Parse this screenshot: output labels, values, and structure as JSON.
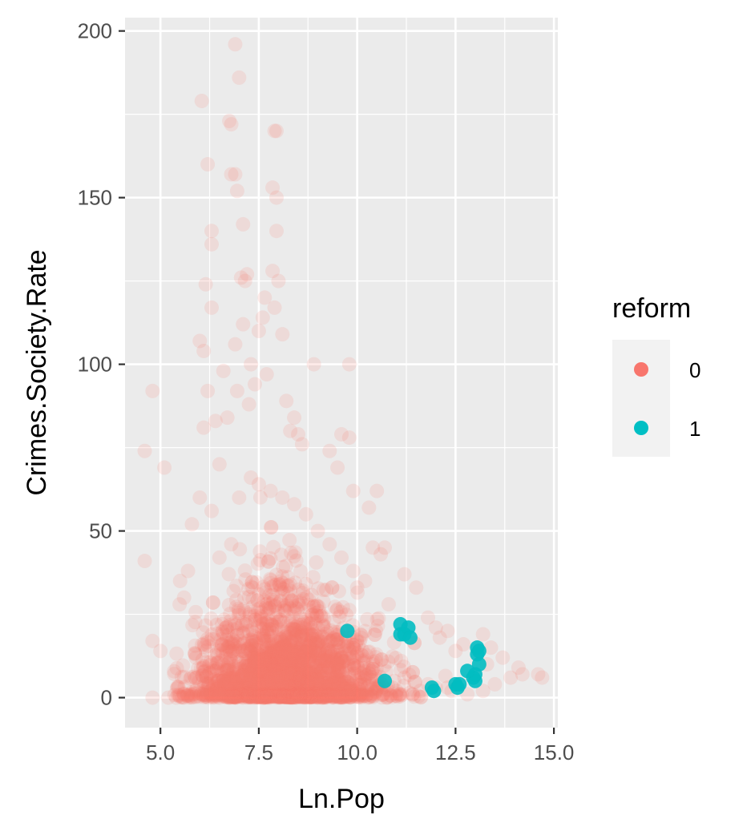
{
  "chart_data": {
    "type": "scatter",
    "xlabel": "Ln.Pop",
    "ylabel": "Crimes.Society.Rate",
    "xlim": [
      4.1,
      15.1
    ],
    "ylim": [
      -9,
      204
    ],
    "x_ticks": [
      5.0,
      7.5,
      10.0,
      12.5,
      15.0
    ],
    "x_tick_labels": [
      "5.0",
      "7.5",
      "10.0",
      "12.5",
      "15.0"
    ],
    "y_ticks": [
      0,
      50,
      100,
      150,
      200
    ],
    "y_tick_labels": [
      "0",
      "50",
      "100",
      "150",
      "200"
    ],
    "grid": true,
    "legend": {
      "title": "reform",
      "position": "right",
      "entries": [
        {
          "label": "0",
          "color": "#F8766D"
        },
        {
          "label": "1",
          "color": "#00BFC4"
        }
      ]
    },
    "series": [
      {
        "name": "0",
        "color": "#F8766D",
        "opacity": 0.15,
        "points": [
          [
            4.6,
            74
          ],
          [
            4.8,
            92
          ],
          [
            4.6,
            41
          ],
          [
            4.8,
            17
          ],
          [
            5.1,
            69
          ],
          [
            5.0,
            14
          ],
          [
            4.8,
            0
          ],
          [
            5.2,
            0
          ],
          [
            5.4,
            0
          ],
          [
            5.5,
            35
          ],
          [
            5.7,
            38
          ],
          [
            5.8,
            52
          ],
          [
            5.9,
            12
          ],
          [
            5.6,
            30
          ],
          [
            6.0,
            60
          ],
          [
            6.1,
            81
          ],
          [
            6.0,
            107
          ],
          [
            6.05,
            179
          ],
          [
            6.2,
            160
          ],
          [
            6.15,
            124
          ],
          [
            6.3,
            140
          ],
          [
            6.3,
            136
          ],
          [
            6.3,
            117
          ],
          [
            6.1,
            104
          ],
          [
            6.2,
            92
          ],
          [
            6.4,
            83
          ],
          [
            6.5,
            70
          ],
          [
            6.3,
            56
          ],
          [
            6.6,
            98
          ],
          [
            6.7,
            84
          ],
          [
            6.75,
            173
          ],
          [
            6.8,
            172
          ],
          [
            6.8,
            157
          ],
          [
            6.9,
            157
          ],
          [
            6.95,
            152
          ],
          [
            6.9,
            196
          ],
          [
            7.0,
            186
          ],
          [
            7.1,
            142
          ],
          [
            7.05,
            126
          ],
          [
            7.15,
            125
          ],
          [
            7.2,
            127
          ],
          [
            7.1,
            112
          ],
          [
            6.9,
            106
          ],
          [
            7.3,
            100
          ],
          [
            6.95,
            92
          ],
          [
            7.25,
            88
          ],
          [
            7.4,
            94
          ],
          [
            7.5,
            110
          ],
          [
            7.6,
            114
          ],
          [
            7.65,
            120
          ],
          [
            7.85,
            153
          ],
          [
            7.9,
            170
          ],
          [
            7.95,
            170
          ],
          [
            7.95,
            150
          ],
          [
            7.95,
            140
          ],
          [
            7.85,
            128
          ],
          [
            8.0,
            125
          ],
          [
            7.9,
            117
          ],
          [
            8.1,
            109
          ],
          [
            7.7,
            97
          ],
          [
            8.2,
            89
          ],
          [
            8.4,
            84
          ],
          [
            8.3,
            80
          ],
          [
            8.5,
            79
          ],
          [
            8.6,
            76
          ],
          [
            8.9,
            100
          ],
          [
            9.8,
            100
          ],
          [
            9.6,
            79
          ],
          [
            9.8,
            78
          ],
          [
            9.3,
            74
          ],
          [
            9.5,
            69
          ],
          [
            9.9,
            62
          ],
          [
            10.5,
            62
          ],
          [
            10.3,
            57
          ],
          [
            10.7,
            45
          ],
          [
            10.6,
            43
          ],
          [
            11.2,
            37
          ],
          [
            11.5,
            33
          ],
          [
            10.0,
            33
          ],
          [
            10.8,
            28
          ],
          [
            11.8,
            24
          ],
          [
            12.0,
            21
          ],
          [
            12.3,
            20
          ],
          [
            12.1,
            18
          ],
          [
            12.7,
            16
          ],
          [
            12.5,
            14
          ],
          [
            13.2,
            19
          ],
          [
            13.4,
            15
          ],
          [
            13.7,
            12
          ],
          [
            13.3,
            10
          ],
          [
            14.1,
            9
          ],
          [
            14.2,
            7
          ],
          [
            14.7,
            6
          ],
          [
            14.6,
            7
          ],
          [
            13.9,
            6
          ],
          [
            13.5,
            4
          ],
          [
            13.2,
            2
          ],
          [
            12.8,
            1
          ],
          [
            12.0,
            3
          ],
          [
            11.6,
            2
          ],
          [
            5.6,
            1
          ],
          [
            5.9,
            2
          ],
          [
            6.2,
            4
          ],
          [
            6.4,
            8
          ],
          [
            6.6,
            10
          ],
          [
            6.7,
            20
          ],
          [
            6.5,
            42
          ],
          [
            6.8,
            46
          ],
          [
            7.0,
            60
          ],
          [
            7.3,
            66
          ],
          [
            7.5,
            64
          ],
          [
            7.8,
            62
          ],
          [
            8.1,
            60
          ],
          [
            8.4,
            58
          ],
          [
            8.7,
            55
          ],
          [
            9.0,
            50
          ],
          [
            9.3,
            46
          ],
          [
            9.6,
            42
          ],
          [
            9.9,
            38
          ],
          [
            10.2,
            35
          ]
        ],
        "dense_region": {
          "center": [
            8.2,
            8
          ],
          "description_points": [
            [
              6.5,
              0
            ],
            [
              7.0,
              2
            ],
            [
              7.5,
              5
            ],
            [
              8.0,
              10
            ],
            [
              8.5,
              15
            ],
            [
              9.0,
              12
            ],
            [
              9.5,
              8
            ],
            [
              10.0,
              5
            ],
            [
              10.5,
              3
            ],
            [
              11.0,
              2
            ],
            [
              7.2,
              20
            ],
            [
              7.8,
              28
            ],
            [
              8.3,
              32
            ],
            [
              8.8,
              26
            ],
            [
              9.2,
              18
            ],
            [
              9.8,
              14
            ],
            [
              10.4,
              10
            ],
            [
              11.2,
              6
            ],
            [
              11.8,
              4
            ],
            [
              12.4,
              2
            ]
          ]
        }
      },
      {
        "name": "1",
        "color": "#00BFC4",
        "opacity": 0.85,
        "points": [
          [
            9.75,
            20
          ],
          [
            10.7,
            5
          ],
          [
            11.1,
            22
          ],
          [
            11.1,
            19
          ],
          [
            11.2,
            19
          ],
          [
            11.3,
            21
          ],
          [
            11.35,
            18
          ],
          [
            11.9,
            3
          ],
          [
            11.95,
            2
          ],
          [
            12.5,
            4
          ],
          [
            12.55,
            3
          ],
          [
            12.6,
            4
          ],
          [
            12.95,
            6
          ],
          [
            13.0,
            5
          ],
          [
            13.05,
            15
          ],
          [
            13.05,
            13
          ],
          [
            13.1,
            10
          ],
          [
            13.0,
            7
          ],
          [
            13.1,
            14
          ],
          [
            12.8,
            8
          ]
        ]
      }
    ]
  }
}
